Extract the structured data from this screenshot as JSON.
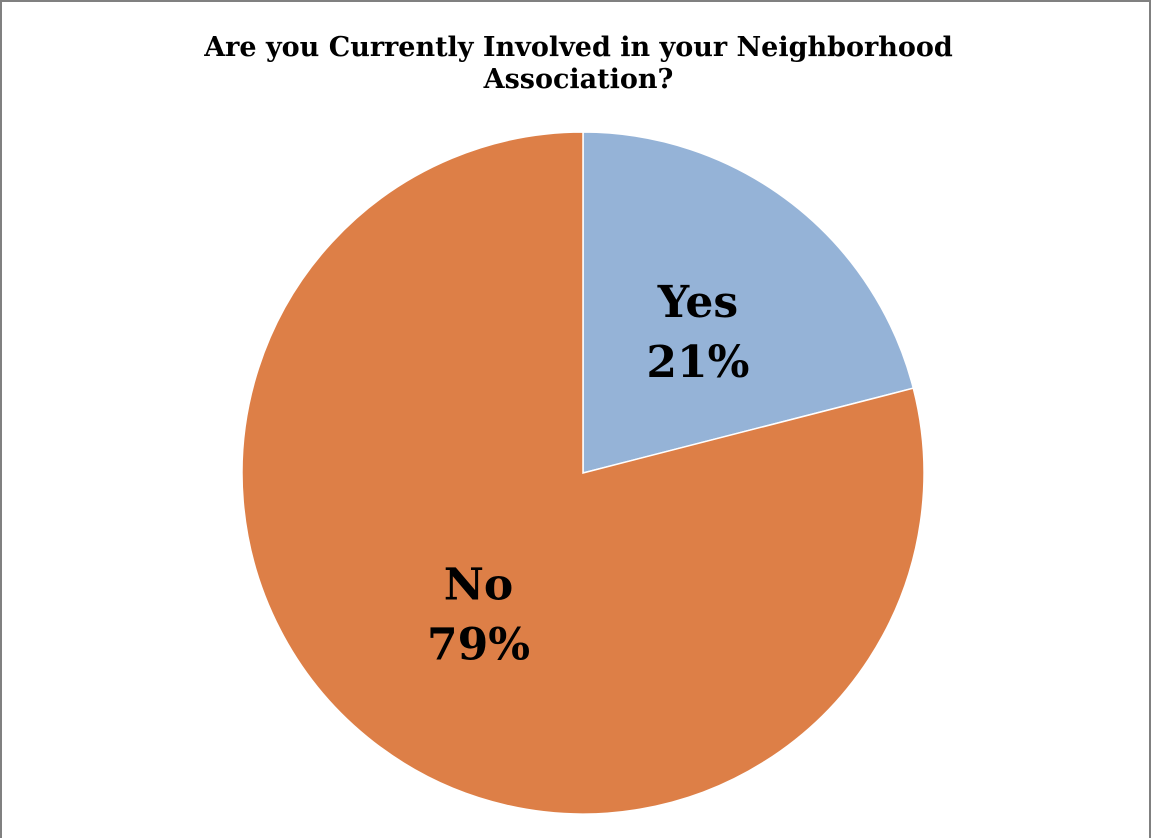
{
  "chart_data": {
    "type": "pie",
    "title_lines": [
      "Are you Currently Involved in your Neighborhood",
      "Association?"
    ],
    "slices": [
      {
        "label": "Yes",
        "value": 21,
        "display": "21%",
        "color": "#95B3D7"
      },
      {
        "label": "No",
        "value": 79,
        "display": "79%",
        "color": "#DD7F47"
      }
    ],
    "legend": "none",
    "start_angle": "12 o'clock",
    "direction": "clockwise"
  }
}
